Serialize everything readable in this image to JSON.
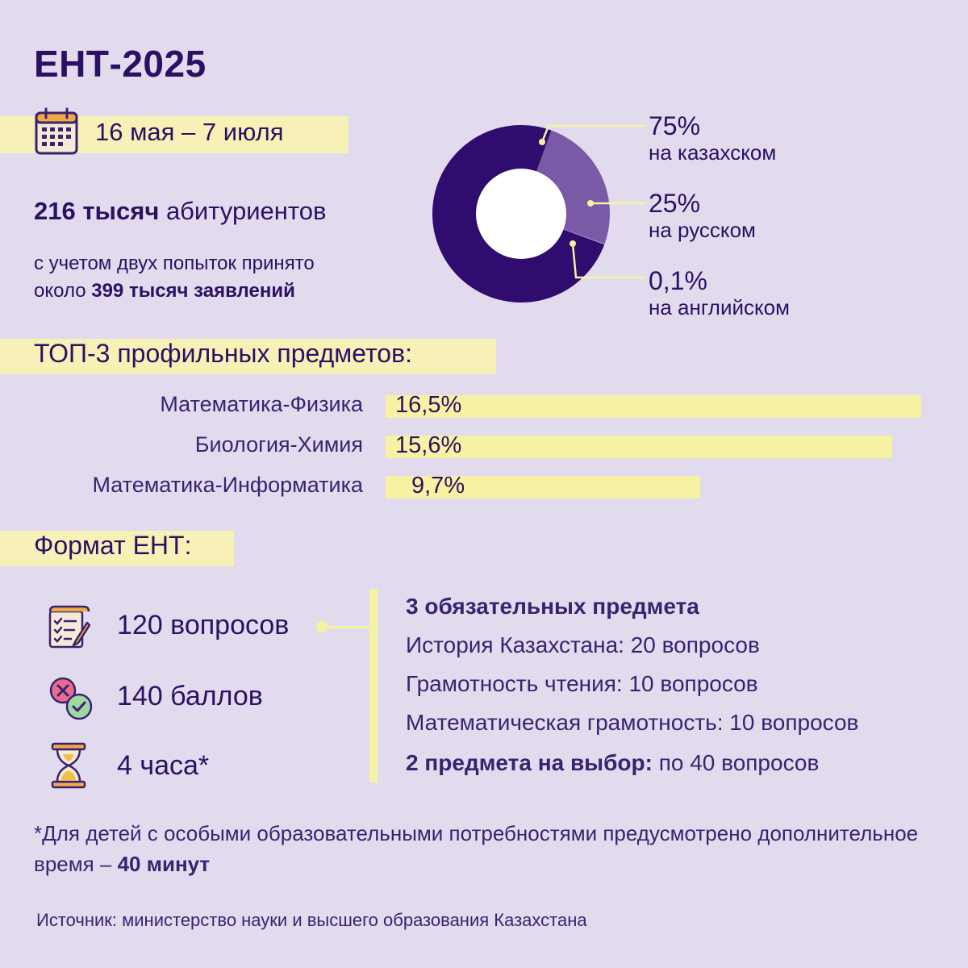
{
  "title": "ЕНТ-2025",
  "dates": "16 мая – 7 июля",
  "applicants": {
    "count": "216 тысяч",
    "label": " абитуриентов"
  },
  "note": {
    "line1": "с учетом двух попыток принято",
    "line2_prefix": "около ",
    "line2_bold": "399 тысяч заявлений"
  },
  "colors": {
    "kazakh": "#2f0c6e",
    "russian": "#7a5aa6",
    "english": "#b9a4d8",
    "highlight": "#f7f1a4",
    "text": "#2b1063"
  },
  "chart_data": [
    {
      "type": "pie",
      "categories": [
        "на казахском",
        "на русском",
        "на английском"
      ],
      "values": [
        75,
        25,
        0.1
      ],
      "labels": [
        "75%",
        "25%",
        "0,1%"
      ]
    },
    {
      "type": "bar",
      "title": "ТОП-3 профильных предметов:",
      "categories": [
        "Математика-Физика",
        "Биология-Химия",
        "Математика-Информатика"
      ],
      "values": [
        16.5,
        15.6,
        9.7
      ],
      "labels": [
        "16,5%",
        "15,6%",
        "9,7%"
      ]
    }
  ],
  "format": {
    "title": "Формат ЕНТ:",
    "items": [
      {
        "icon": "checklist-icon",
        "text": "120 вопросов"
      },
      {
        "icon": "cross-check-icon",
        "text": "140 баллов"
      },
      {
        "icon": "hourglass-icon",
        "text": "4 часа*"
      }
    ],
    "required_title": "3 обязательных предмета",
    "required": [
      "История Казахстана: 20 вопросов",
      "Грамотность чтения: 10 вопросов",
      "Математическая грамотность: 10 вопросов"
    ],
    "elective_bold": "2 предмета на выбор:",
    "elective_rest": " по 40 вопросов"
  },
  "footnote": {
    "text": "*Для детей с особыми образовательными потребностями предусмотрено дополнительное время – ",
    "bold": "40 минут"
  },
  "source": "Источник: министерство науки и высшего образования Казахстана"
}
